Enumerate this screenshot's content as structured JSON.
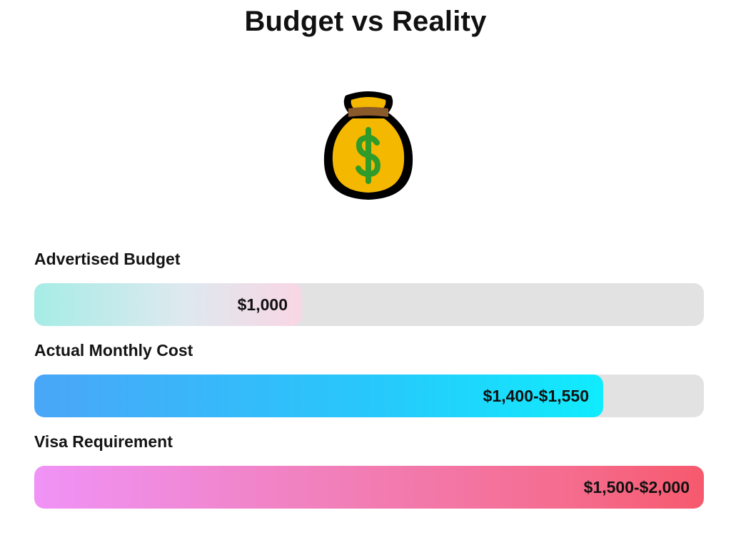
{
  "chart_data": {
    "type": "bar",
    "orientation": "horizontal",
    "title": "Budget vs Reality",
    "icon": "money-bag-icon",
    "scale_max": 2000,
    "categories": [
      "Advertised Budget",
      "Actual Monthly Cost",
      "Visa Requirement"
    ],
    "series": [
      {
        "values": [
          1000,
          1550,
          2000
        ],
        "value_labels": [
          "$1,000",
          "$1,400-$1,550",
          "$1,500-$2,000"
        ]
      }
    ],
    "ranges": [
      [
        1000,
        1000
      ],
      [
        1400,
        1550
      ],
      [
        1500,
        2000
      ]
    ],
    "colors": {
      "track": "#e2e2e2",
      "advertised_gradient": [
        "#a6ece6",
        "#f9d6e4"
      ],
      "actual_gradient": [
        "#4aa6f8",
        "#10ecfd"
      ],
      "visa_gradient": [
        "#f093f7",
        "#f6596d"
      ]
    }
  }
}
